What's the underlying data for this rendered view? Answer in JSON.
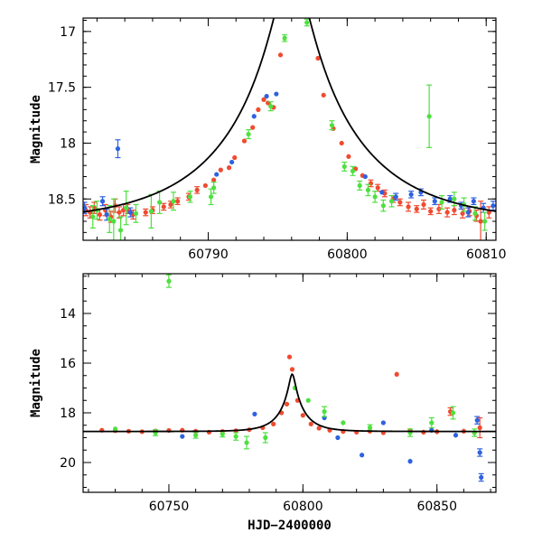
{
  "colors": {
    "s1": "#f04a30",
    "s2": "#2f62e0",
    "s3": "#4ee040",
    "model": "#000000"
  },
  "chart_data": [
    {
      "type": "scatter",
      "title": "",
      "xlabel": "",
      "ylabel": "Magnitude",
      "xlim": [
        60781,
        60810.7
      ],
      "ylim": [
        18.87,
        16.88
      ],
      "y_inverted": true,
      "xticks": [
        60790,
        60800,
        60810
      ],
      "yticks": [
        17,
        17.5,
        18,
        18.5
      ],
      "model_curve": {
        "t0": 60796.0,
        "u0": 0.12,
        "tE": 9.0,
        "baseline_mag": 18.72
      },
      "series": [
        {
          "color_key": "s1",
          "points": [
            [
              60781.2,
              18.6,
              0.05
            ],
            [
              60781.5,
              18.62,
              0.05
            ],
            [
              60781.8,
              18.58,
              0.05
            ],
            [
              60782.2,
              18.64,
              0.05
            ],
            [
              60782.6,
              18.6,
              0.05
            ],
            [
              60783.0,
              18.66,
              0.05
            ],
            [
              60783.3,
              18.56,
              0.06
            ],
            [
              60783.6,
              18.62,
              0.05
            ],
            [
              60783.9,
              18.6,
              0.05
            ],
            [
              60784.2,
              18.59,
              0.04
            ],
            [
              60784.6,
              18.64,
              0.04
            ],
            [
              60785.5,
              18.62,
              0.03
            ],
            [
              60786.0,
              18.6,
              0.03
            ],
            [
              60786.8,
              18.57,
              0.03
            ],
            [
              60787.3,
              18.55,
              0.03
            ],
            [
              60787.8,
              18.52,
              0.03
            ],
            [
              60788.6,
              18.48,
              0.03
            ],
            [
              60789.2,
              18.42,
              0.03
            ],
            [
              60789.8,
              18.38,
              0.02
            ],
            [
              60790.4,
              18.33,
              0.02
            ],
            [
              60790.9,
              18.24,
              0.02
            ],
            [
              60791.5,
              18.22,
              0.02
            ],
            [
              60791.9,
              18.13,
              0.02
            ],
            [
              60792.6,
              17.98,
              0.02
            ],
            [
              60793.2,
              17.86,
              0.02
            ],
            [
              60793.6,
              17.7,
              0.02
            ],
            [
              60794.0,
              17.61,
              0.02
            ],
            [
              60794.3,
              17.64,
              0.02
            ],
            [
              60794.7,
              17.68,
              0.02
            ],
            [
              60795.2,
              17.21,
              0.02
            ],
            [
              60797.9,
              17.24,
              0.02
            ],
            [
              60798.3,
              17.57,
              0.02
            ],
            [
              60799.0,
              17.87,
              0.02
            ],
            [
              60799.6,
              18.0,
              0.02
            ],
            [
              60800.1,
              18.12,
              0.02
            ],
            [
              60800.6,
              18.23,
              0.02
            ],
            [
              60801.1,
              18.29,
              0.02
            ],
            [
              60801.7,
              18.36,
              0.03
            ],
            [
              60802.2,
              18.4,
              0.03
            ],
            [
              60802.7,
              18.45,
              0.03
            ],
            [
              60803.3,
              18.5,
              0.03
            ],
            [
              60803.8,
              18.53,
              0.03
            ],
            [
              60804.4,
              18.57,
              0.04
            ],
            [
              60805.0,
              18.59,
              0.03
            ],
            [
              60805.5,
              18.55,
              0.04
            ],
            [
              60806.0,
              18.61,
              0.03
            ],
            [
              60806.6,
              18.59,
              0.04
            ],
            [
              60807.2,
              18.62,
              0.04
            ],
            [
              60807.7,
              18.6,
              0.04
            ],
            [
              60808.3,
              18.63,
              0.04
            ],
            [
              60808.8,
              18.61,
              0.04
            ],
            [
              60809.3,
              18.65,
              0.05
            ],
            [
              60809.6,
              18.7,
              0.18
            ],
            [
              60810.2,
              18.62,
              0.05
            ]
          ]
        },
        {
          "color_key": "s2",
          "points": [
            [
              60781.1,
              18.58,
              0.05
            ],
            [
              60782.4,
              18.52,
              0.04
            ],
            [
              60782.7,
              18.64,
              0.05
            ],
            [
              60783.5,
              18.05,
              0.08
            ],
            [
              60784.4,
              18.62,
              0.04
            ],
            [
              60790.6,
              18.28,
              0.02
            ],
            [
              60791.7,
              18.17,
              0.02
            ],
            [
              60793.3,
              17.76,
              0.02
            ],
            [
              60794.2,
              17.58,
              0.02
            ],
            [
              60794.9,
              17.56,
              0.02
            ],
            [
              60801.3,
              18.3,
              0.02
            ],
            [
              60802.5,
              18.44,
              0.02
            ],
            [
              60803.5,
              18.48,
              0.03
            ],
            [
              60804.6,
              18.46,
              0.03
            ],
            [
              60805.3,
              18.44,
              0.03
            ],
            [
              60806.3,
              18.52,
              0.03
            ],
            [
              60807.4,
              18.5,
              0.03
            ],
            [
              60808.2,
              18.56,
              0.03
            ],
            [
              60808.7,
              18.62,
              0.04
            ],
            [
              60809.1,
              18.52,
              0.03
            ],
            [
              60809.8,
              18.58,
              0.04
            ],
            [
              60810.5,
              18.56,
              0.04
            ]
          ]
        },
        {
          "color_key": "s3",
          "points": [
            [
              60781.7,
              18.66,
              0.1
            ],
            [
              60782.0,
              18.6,
              0.08
            ],
            [
              60782.9,
              18.68,
              0.12
            ],
            [
              60783.2,
              18.7,
              0.2
            ],
            [
              60783.7,
              18.78,
              0.12
            ],
            [
              60784.1,
              18.58,
              0.15
            ],
            [
              60784.8,
              18.63,
              0.08
            ],
            [
              60785.9,
              18.61,
              0.15
            ],
            [
              60786.5,
              18.53,
              0.1
            ],
            [
              60787.5,
              18.52,
              0.08
            ],
            [
              60788.7,
              18.48,
              0.05
            ],
            [
              60790.2,
              18.48,
              0.07
            ],
            [
              60790.4,
              18.4,
              0.05
            ],
            [
              60792.9,
              17.92,
              0.04
            ],
            [
              60794.5,
              17.67,
              0.04
            ],
            [
              60795.5,
              17.06,
              0.03
            ],
            [
              60797.1,
              16.92,
              0.03
            ],
            [
              60798.9,
              17.84,
              0.04
            ],
            [
              60799.8,
              18.21,
              0.04
            ],
            [
              60800.4,
              18.25,
              0.04
            ],
            [
              60800.9,
              18.38,
              0.04
            ],
            [
              60801.5,
              18.42,
              0.05
            ],
            [
              60802.0,
              18.48,
              0.05
            ],
            [
              60802.6,
              18.56,
              0.05
            ],
            [
              60803.2,
              18.52,
              0.05
            ],
            [
              60805.9,
              17.76,
              0.28
            ],
            [
              60806.8,
              18.53,
              0.06
            ],
            [
              60807.7,
              18.5,
              0.06
            ],
            [
              60808.4,
              18.55,
              0.06
            ],
            [
              60809.2,
              18.63,
              0.06
            ],
            [
              60809.9,
              18.7,
              0.08
            ]
          ]
        }
      ]
    },
    {
      "type": "scatter",
      "title": "",
      "xlabel": "HJD−2400000",
      "ylabel": "Magnitude",
      "xlim": [
        60718,
        60872
      ],
      "ylim": [
        21.2,
        12.4
      ],
      "y_inverted": true,
      "xticks": [
        60750,
        60800,
        60850
      ],
      "yticks": [
        14,
        16,
        18,
        20
      ],
      "model_curve": {
        "t0": 60796.0,
        "u0": 0.12,
        "tE": 9.0,
        "baseline_mag": 18.75
      },
      "series": [
        {
          "color_key": "s1",
          "points": [
            [
              60725,
              18.7,
              0.08
            ],
            [
              60730,
              18.72,
              0.07
            ],
            [
              60735,
              18.74,
              0.07
            ],
            [
              60740,
              18.76,
              0.07
            ],
            [
              60745,
              18.73,
              0.07
            ],
            [
              60750,
              18.71,
              0.07
            ],
            [
              60755,
              18.7,
              0.07
            ],
            [
              60760,
              18.74,
              0.07
            ],
            [
              60765,
              18.78,
              0.07
            ],
            [
              60770,
              18.75,
              0.08
            ],
            [
              60775,
              18.72,
              0.08
            ],
            [
              60780,
              18.68,
              0.08
            ],
            [
              60785,
              18.6,
              0.08
            ],
            [
              60789,
              18.45,
              0.06
            ],
            [
              60792,
              18.0,
              0.05
            ],
            [
              60794,
              17.65,
              0.05
            ],
            [
              60795,
              15.75,
              0.05
            ],
            [
              60796,
              16.25,
              0.05
            ],
            [
              60798,
              17.5,
              0.05
            ],
            [
              60800,
              18.1,
              0.06
            ],
            [
              60803,
              18.45,
              0.07
            ],
            [
              60806,
              18.62,
              0.07
            ],
            [
              60810,
              18.7,
              0.08
            ],
            [
              60815,
              18.75,
              0.08
            ],
            [
              60820,
              18.78,
              0.08
            ],
            [
              60825,
              18.74,
              0.08
            ],
            [
              60830,
              18.8,
              0.08
            ],
            [
              60835,
              16.45,
              0.1
            ],
            [
              60840,
              18.72,
              0.1
            ],
            [
              60845,
              18.78,
              0.1
            ],
            [
              60850,
              18.76,
              0.1
            ],
            [
              60855,
              17.95,
              0.15
            ],
            [
              60860,
              18.74,
              0.1
            ],
            [
              60864,
              18.8,
              0.1
            ],
            [
              60866,
              18.6,
              0.4
            ]
          ]
        },
        {
          "color_key": "s2",
          "points": [
            [
              60755,
              18.95,
              0.06
            ],
            [
              60782,
              18.05,
              0.08
            ],
            [
              60808,
              18.2,
              0.1
            ],
            [
              60813,
              19.0,
              0.08
            ],
            [
              60822,
              19.7,
              0.06
            ],
            [
              60830,
              18.4,
              0.08
            ],
            [
              60840,
              19.95,
              0.1
            ],
            [
              60848,
              18.7,
              0.1
            ],
            [
              60857,
              18.9,
              0.1
            ],
            [
              60865,
              18.3,
              0.15
            ],
            [
              60866,
              19.6,
              0.15
            ],
            [
              60866.5,
              20.6,
              0.15
            ]
          ]
        },
        {
          "color_key": "s3",
          "points": [
            [
              60730,
              18.65,
              0.1
            ],
            [
              60745,
              18.8,
              0.12
            ],
            [
              60750,
              12.7,
              0.25
            ],
            [
              60760,
              18.9,
              0.12
            ],
            [
              60770,
              18.85,
              0.12
            ],
            [
              60775,
              18.95,
              0.15
            ],
            [
              60779,
              19.2,
              0.25
            ],
            [
              60786,
              19.0,
              0.2
            ],
            [
              60797,
              17.0,
              0.05
            ],
            [
              60802,
              17.5,
              0.08
            ],
            [
              60808,
              17.95,
              0.2
            ],
            [
              60815,
              18.4,
              0.1
            ],
            [
              60825,
              18.6,
              0.12
            ],
            [
              60840,
              18.8,
              0.15
            ],
            [
              60848,
              18.4,
              0.2
            ],
            [
              60856,
              18.0,
              0.25
            ],
            [
              60864,
              18.8,
              0.15
            ]
          ]
        }
      ]
    }
  ]
}
